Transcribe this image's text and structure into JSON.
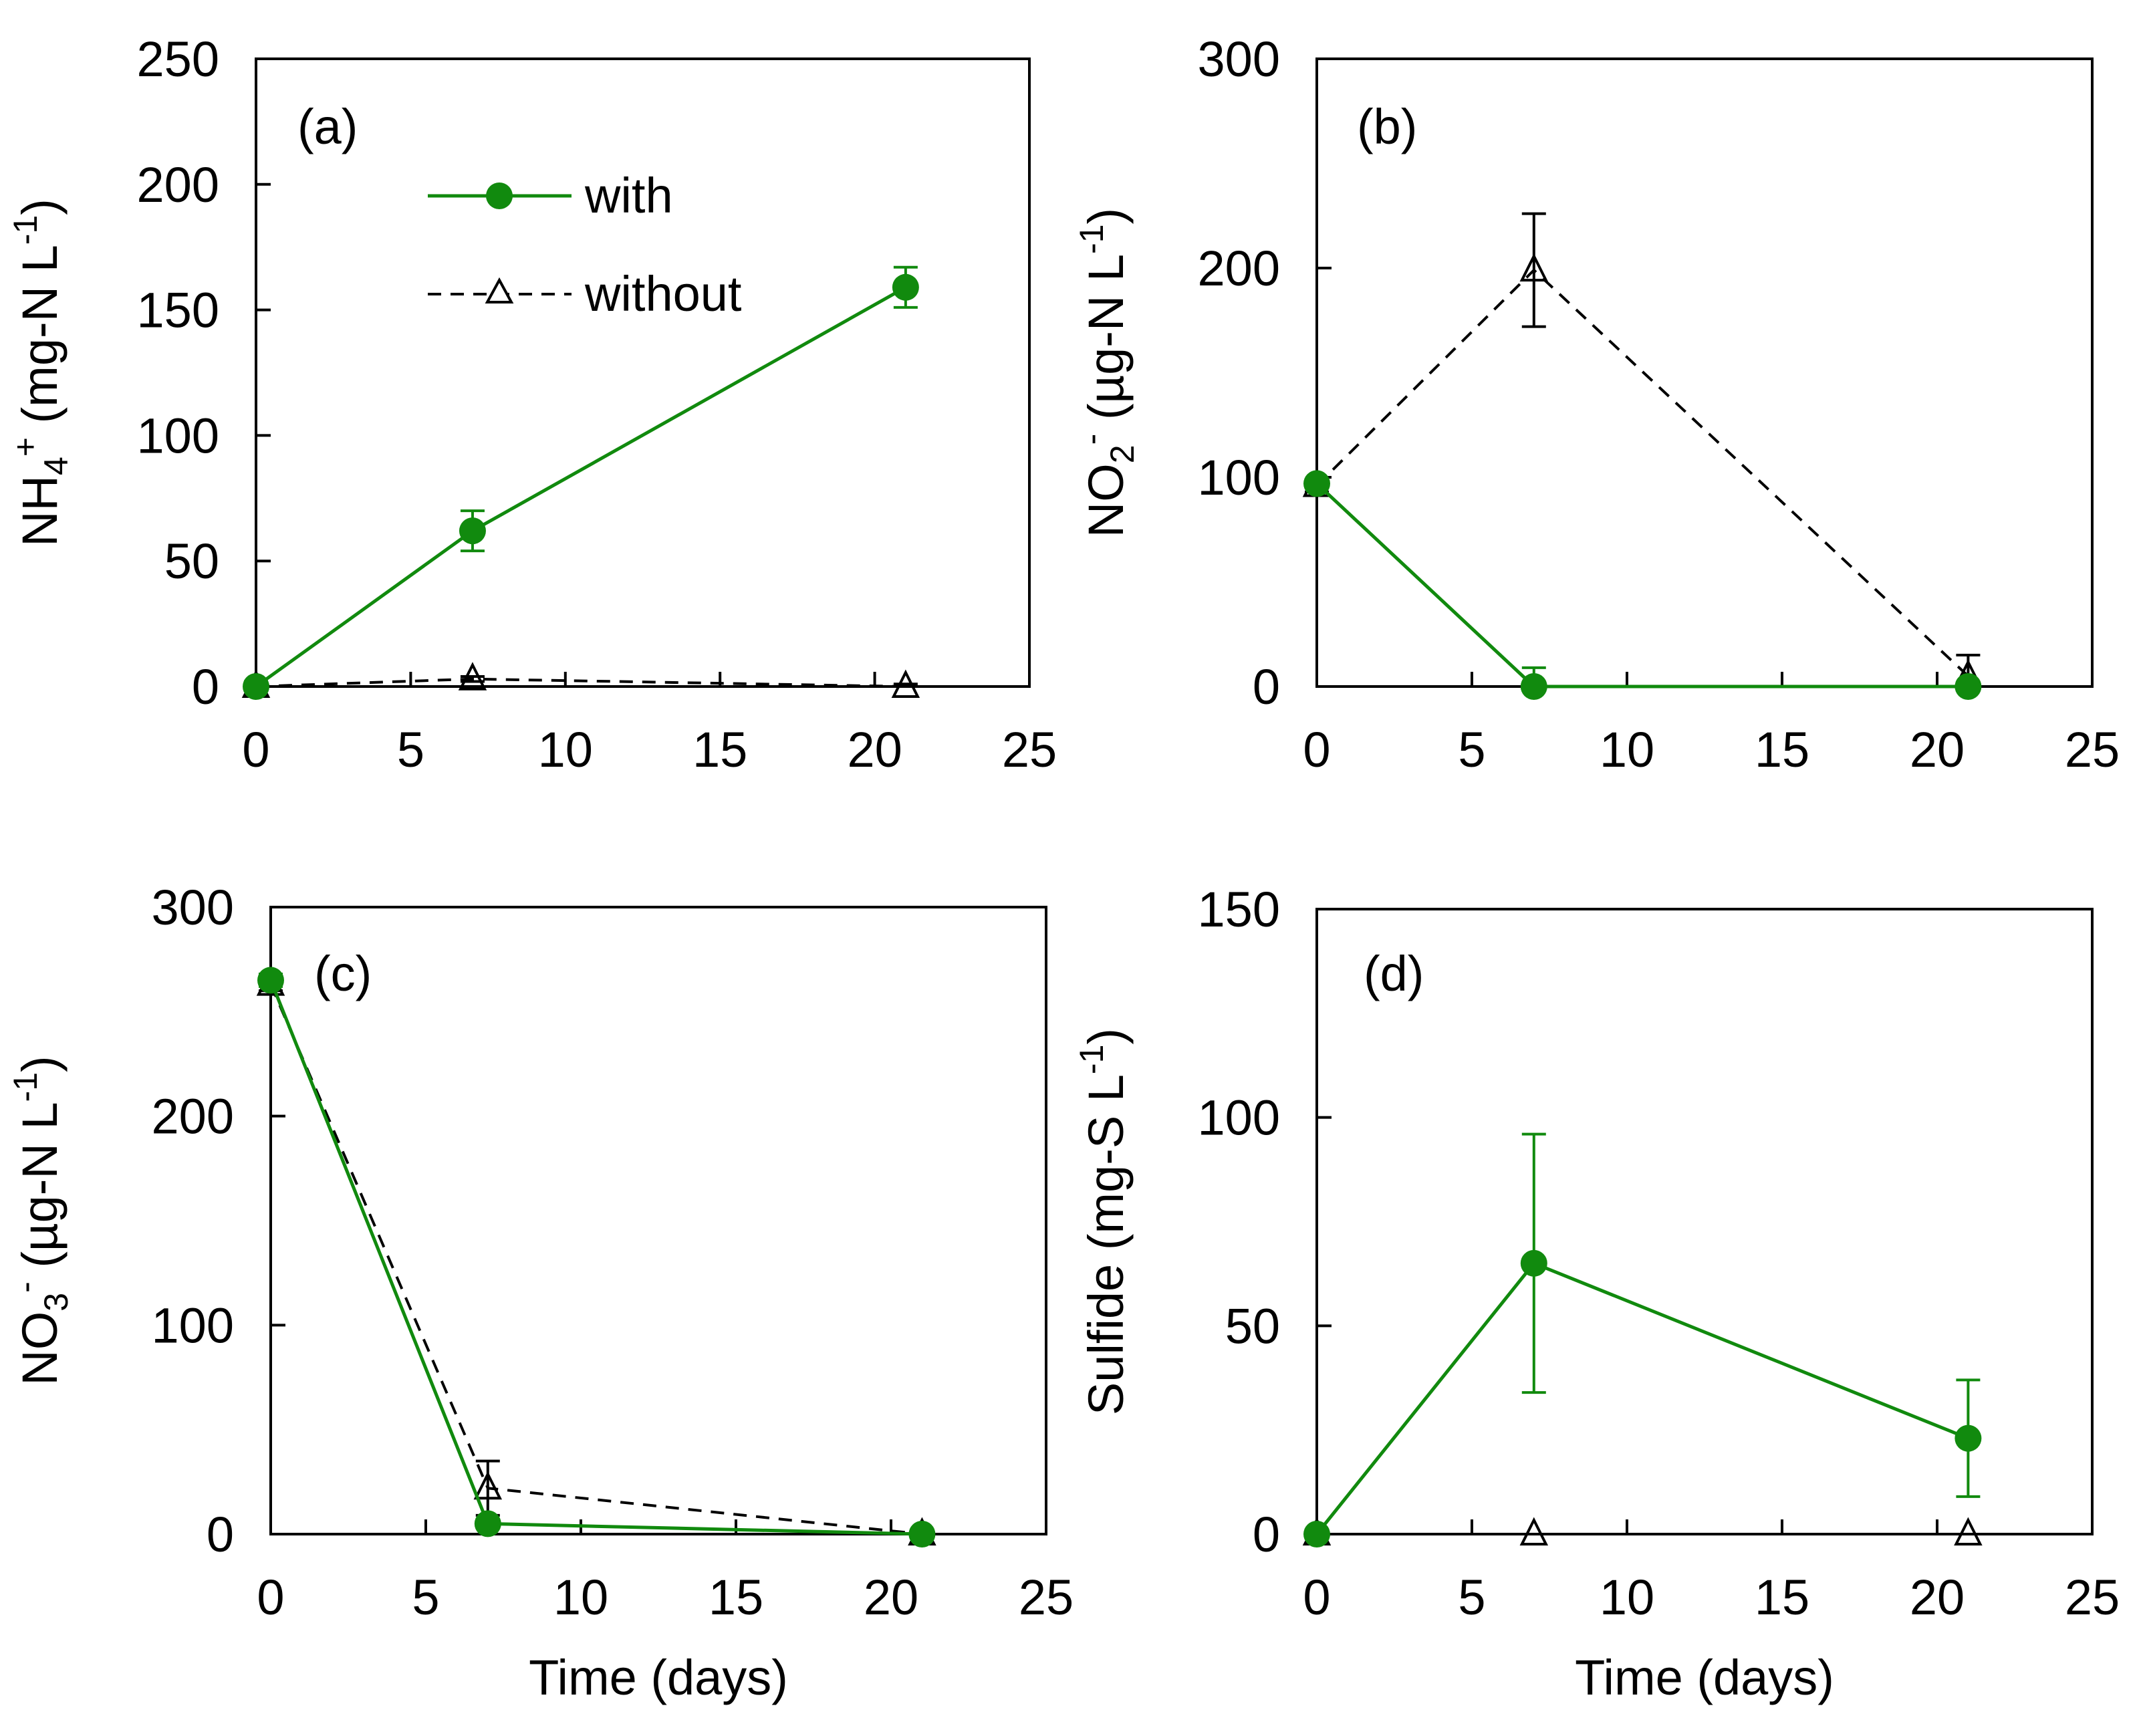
{
  "colors": {
    "with": "#118a0e",
    "without": "#000000",
    "axis": "#000000"
  },
  "legend": {
    "with": "with",
    "without": "without"
  },
  "chart_data": [
    {
      "type": "line",
      "panel_label": "(a)",
      "ylabel": "NH4+ (mg-N L-1)",
      "ylabel_parts": [
        {
          "t": "NH"
        },
        {
          "t": "4",
          "sub": true
        },
        {
          "t": "+",
          "sup": true
        },
        {
          "t": " (mg-N L"
        },
        {
          "t": "-1",
          "sup": true
        },
        {
          "t": ")"
        }
      ],
      "xlabel": "",
      "xlim": [
        0,
        25
      ],
      "ylim": [
        0,
        250
      ],
      "xticks": [
        "0",
        "5",
        "10",
        "15",
        "20",
        "25"
      ],
      "yticks": [
        "0",
        "50",
        "100",
        "150",
        "200",
        "250"
      ],
      "series": [
        {
          "name": "with",
          "x": [
            0,
            7,
            21
          ],
          "y": [
            0,
            62,
            159
          ],
          "err": [
            2,
            8,
            8
          ]
        },
        {
          "name": "without",
          "x": [
            0,
            7,
            21
          ],
          "y": [
            0,
            3,
            0
          ],
          "err": [
            1,
            1,
            1
          ]
        }
      ]
    },
    {
      "type": "line",
      "panel_label": "(b)",
      "ylabel": "NO2- (µg-N L-1)",
      "ylabel_parts": [
        {
          "t": "NO"
        },
        {
          "t": "2",
          "sub": true
        },
        {
          "t": "-",
          "sup": true
        },
        {
          "t": " (µg-N L"
        },
        {
          "t": "-1",
          "sup": true
        },
        {
          "t": ")"
        }
      ],
      "xlabel": "",
      "xlim": [
        0,
        25
      ],
      "ylim": [
        0,
        300
      ],
      "xticks": [
        "0",
        "5",
        "10",
        "15",
        "20",
        "25"
      ],
      "yticks": [
        "0",
        "100",
        "200",
        "300"
      ],
      "series": [
        {
          "name": "with",
          "x": [
            0,
            7,
            21
          ],
          "y": [
            97,
            0,
            0
          ],
          "err": [
            2,
            9,
            2
          ]
        },
        {
          "name": "without",
          "x": [
            0,
            7,
            21
          ],
          "y": [
            96,
            199,
            5
          ],
          "err": [
            3,
            27,
            10
          ]
        }
      ]
    },
    {
      "type": "line",
      "panel_label": "(c)",
      "ylabel": "NO3- (µg-N L-1)",
      "ylabel_parts": [
        {
          "t": "NO"
        },
        {
          "t": "3",
          "sub": true
        },
        {
          "t": "-",
          "sup": true
        },
        {
          "t": " (µg-N L"
        },
        {
          "t": "-1",
          "sup": true
        },
        {
          "t": ")"
        }
      ],
      "xlabel": "Time (days)",
      "xlim": [
        0,
        25
      ],
      "ylim": [
        0,
        300
      ],
      "xticks": [
        "0",
        "5",
        "10",
        "15",
        "20",
        "25"
      ],
      "yticks": [
        "0",
        "100",
        "200",
        "300"
      ],
      "series": [
        {
          "name": "with",
          "x": [
            0,
            7,
            21
          ],
          "y": [
            265,
            5,
            0
          ],
          "err": [
            3,
            2,
            2
          ]
        },
        {
          "name": "without",
          "x": [
            0,
            7,
            21
          ],
          "y": [
            263,
            22,
            0
          ],
          "err": [
            3,
            13,
            2
          ]
        }
      ]
    },
    {
      "type": "line",
      "panel_label": "(d)",
      "ylabel": "Sulfide (mg-S L-1)",
      "ylabel_parts": [
        {
          "t": "Sulfide (mg-S L"
        },
        {
          "t": "-1",
          "sup": true
        },
        {
          "t": ")"
        }
      ],
      "xlabel": "Time (days)",
      "xlim": [
        0,
        25
      ],
      "ylim": [
        0,
        150
      ],
      "xticks": [
        "0",
        "5",
        "10",
        "15",
        "20",
        "25"
      ],
      "yticks": [
        "0",
        "50",
        "100",
        "150"
      ],
      "series": [
        {
          "name": "with",
          "x": [
            0,
            7,
            21
          ],
          "y": [
            0,
            65,
            23
          ],
          "err": [
            1,
            31,
            14
          ]
        },
        {
          "name": "without",
          "x": [
            0,
            7,
            21
          ],
          "y": [
            0,
            0,
            0
          ],
          "err": [
            0,
            0,
            0
          ]
        }
      ]
    }
  ]
}
